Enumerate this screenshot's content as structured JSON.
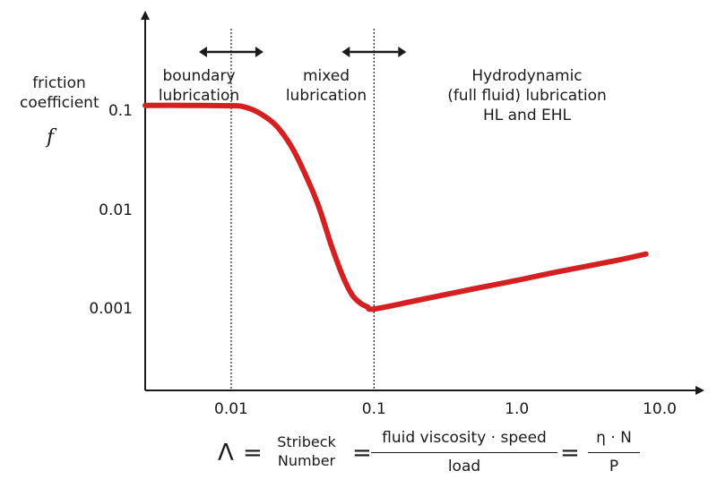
{
  "chart_data": {
    "type": "line",
    "title": "",
    "ylabel_lines": [
      "friction",
      "coefficient"
    ],
    "ylabel_symbol": "f",
    "x_scale": "log",
    "y_scale": "log",
    "x_ticks": [
      0.01,
      0.1,
      1.0,
      10.0
    ],
    "x_tick_labels": [
      "0.01",
      "0.1",
      "1.0",
      "10.0"
    ],
    "y_ticks": [
      0.1,
      0.01,
      0.001
    ],
    "y_tick_labels": [
      "0.1",
      "0.01",
      "0.001"
    ],
    "xlim": [
      0.0025,
      20
    ],
    "ylim": [
      0.00015,
      1
    ],
    "grid": false,
    "series": [
      {
        "color": "#d42020",
        "x": [
          0.0025,
          0.005,
          0.01,
          0.012,
          0.015,
          0.02,
          0.025,
          0.03,
          0.04,
          0.05,
          0.06,
          0.07,
          0.08,
          0.09,
          0.1,
          0.2,
          0.5,
          1.0,
          2.0,
          5.0,
          8.0
        ],
        "y": [
          0.115,
          0.115,
          0.114,
          0.112,
          0.1,
          0.075,
          0.05,
          0.031,
          0.012,
          0.0045,
          0.0022,
          0.0014,
          0.00115,
          0.00105,
          0.001,
          0.00122,
          0.0016,
          0.00195,
          0.0024,
          0.0031,
          0.0036
        ]
      }
    ],
    "regions": [
      {
        "label_lines": [
          "boundary",
          "lubrication"
        ]
      },
      {
        "label_lines": [
          "mixed",
          "lubrication"
        ]
      },
      {
        "label_lines": [
          "Hydrodynamic",
          "(full fluid) lubrication",
          "HL and EHL"
        ]
      }
    ],
    "region_boundaries": [
      0.01,
      0.1
    ],
    "formula": {
      "lambda": "Λ",
      "equals": "=",
      "stribeck_lines": [
        "Stribeck",
        "Number"
      ],
      "numerator": "fluid viscosity · speed",
      "denominator": "load",
      "numerator2": "η · N",
      "denominator2": "P"
    }
  }
}
